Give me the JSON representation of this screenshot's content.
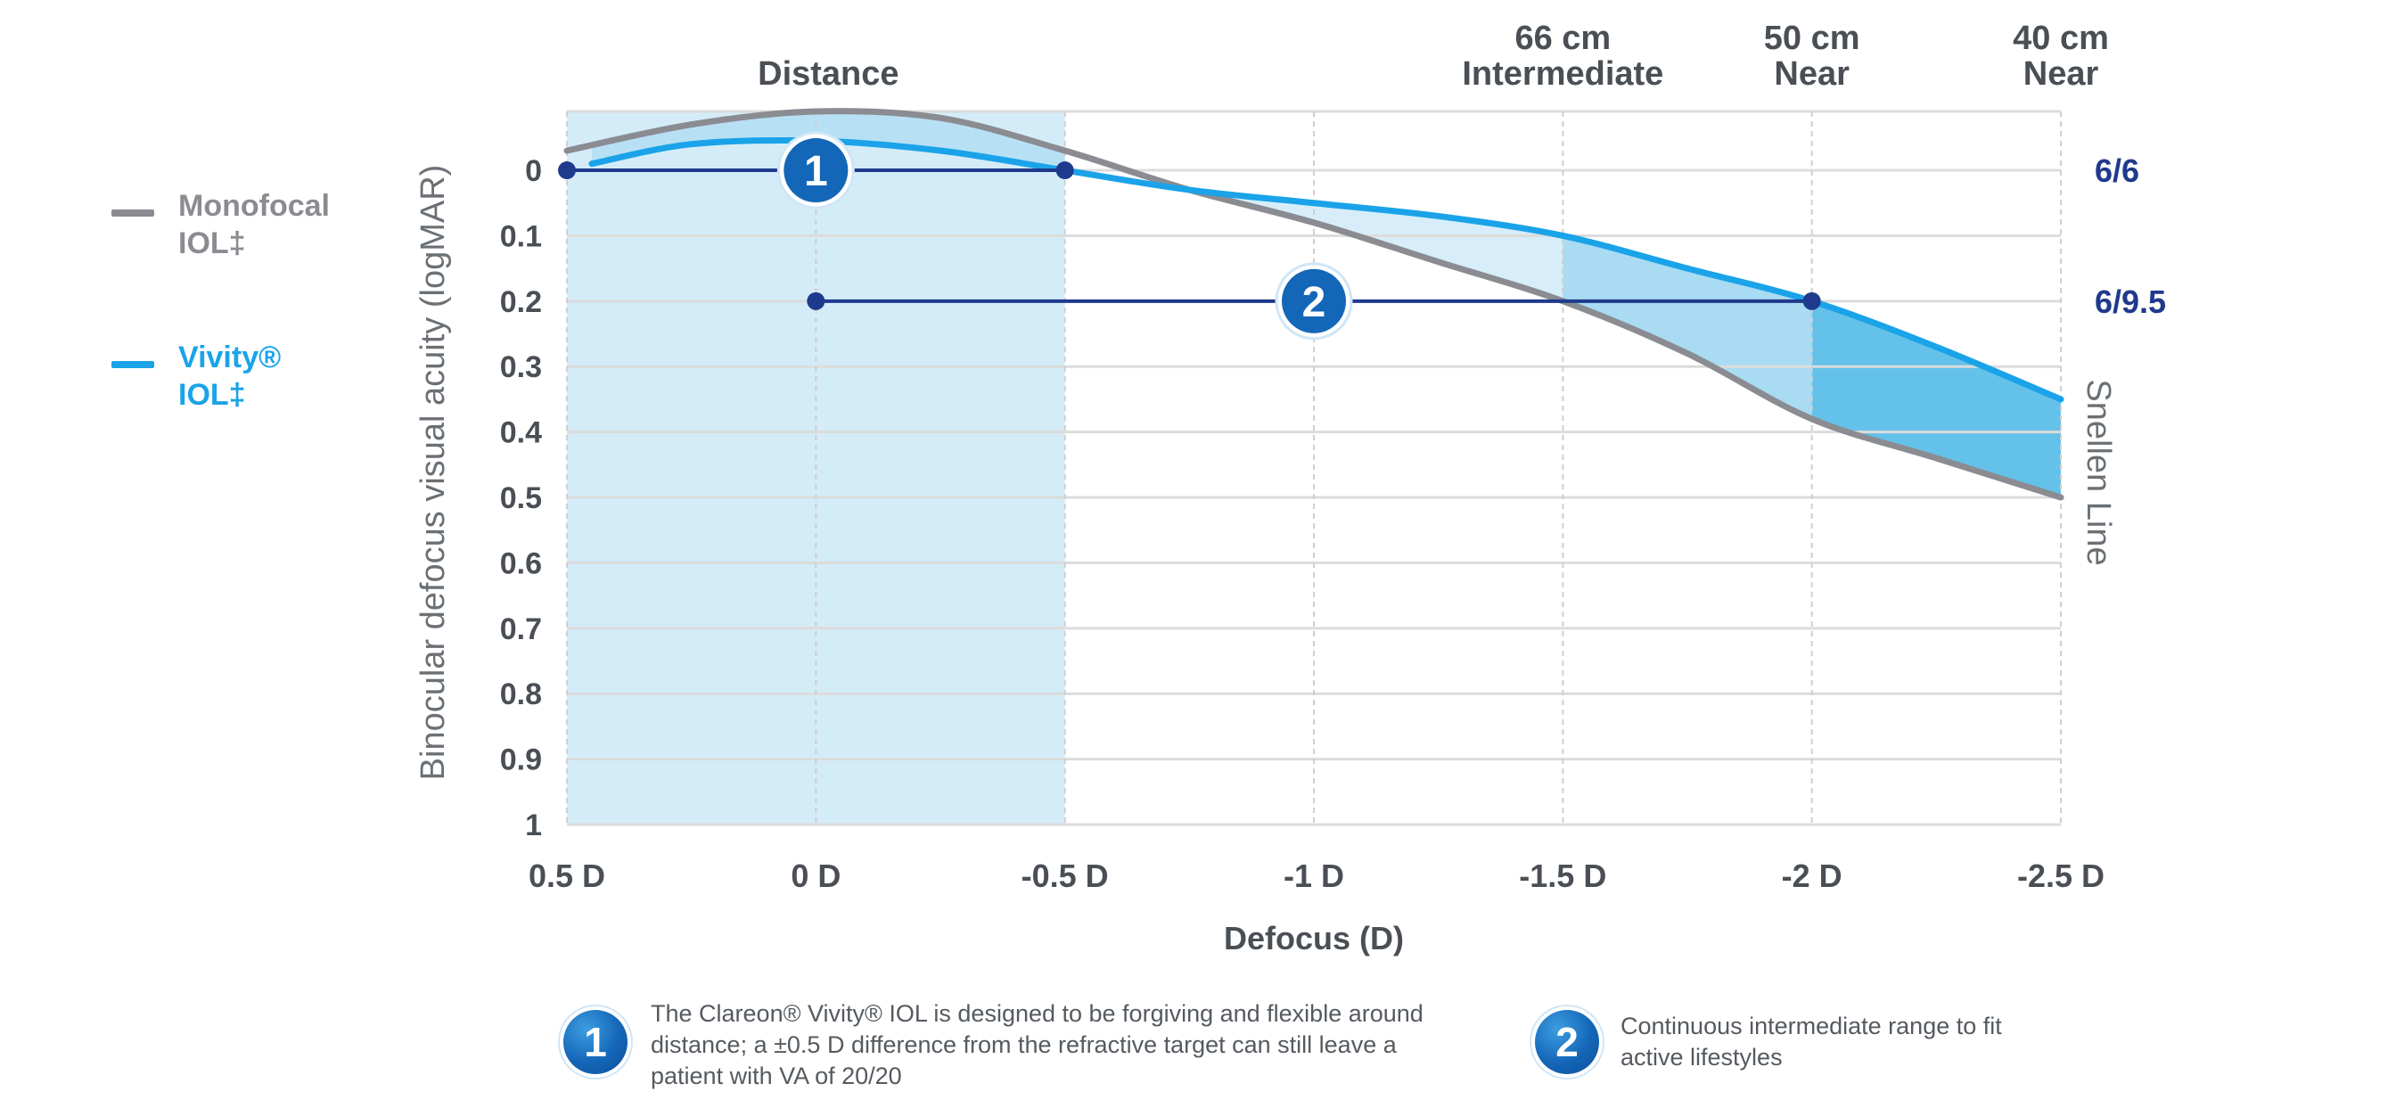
{
  "chart_data": {
    "type": "line",
    "xlabel": "Defocus (D)",
    "ylabel": "Binocular defocus visual acuity (logMAR)",
    "right_axis_label": "Snellen Line",
    "x_ticks": [
      "0.5 D",
      "0 D",
      "-0.5 D",
      "-1 D",
      "-1.5 D",
      "-2 D",
      "-2.5 D"
    ],
    "x_tick_values": [
      0.5,
      0,
      -0.5,
      -1,
      -1.5,
      -2,
      -2.5
    ],
    "y_ticks": [
      "0",
      "0.1",
      "0.2",
      "0.3",
      "0.4",
      "0.5",
      "0.6",
      "0.7",
      "0.8",
      "0.9",
      "1"
    ],
    "y_tick_values": [
      0,
      0.1,
      0.2,
      0.3,
      0.4,
      0.5,
      0.6,
      0.7,
      0.8,
      0.9,
      1
    ],
    "xlim": [
      0.5,
      -2.5
    ],
    "ylim": [
      -0.09,
      1
    ],
    "y_inverted": true,
    "grid": true,
    "legend_position": "left",
    "snellen_labels": [
      {
        "label": "6/6",
        "logmar": 0
      },
      {
        "label": "6/9.5",
        "logmar": 0.2
      }
    ],
    "top_labels": [
      {
        "lines": [
          "Distance"
        ],
        "x": 0
      },
      {
        "lines": [
          "66 cm",
          "Intermediate"
        ],
        "x": -1.5
      },
      {
        "lines": [
          "50 cm",
          "Near"
        ],
        "x": -2
      },
      {
        "lines": [
          "40 cm",
          "Near"
        ],
        "x": -2.5
      }
    ],
    "distance_band": [
      0.5,
      -0.5
    ],
    "series": [
      {
        "name": "Monofocal IOL‡",
        "color": "#8a8c91",
        "x": [
          0.5,
          0.25,
          0,
          -0.25,
          -0.5,
          -0.75,
          -1,
          -1.25,
          -1.5,
          -1.75,
          -2,
          -2.25,
          -2.5
        ],
        "y": [
          -0.03,
          -0.07,
          -0.09,
          -0.08,
          -0.03,
          0.03,
          0.08,
          0.14,
          0.2,
          0.28,
          0.38,
          0.44,
          0.5
        ]
      },
      {
        "name": "Vivity® IOL‡",
        "color": "#1aa3e8",
        "x": [
          0.45,
          0.25,
          0,
          -0.25,
          -0.5,
          -0.75,
          -1,
          -1.25,
          -1.5,
          -1.75,
          -2,
          -2.25,
          -2.5
        ],
        "y": [
          -0.01,
          -0.04,
          -0.045,
          -0.03,
          0,
          0.03,
          0.05,
          0.07,
          0.1,
          0.15,
          0.2,
          0.27,
          0.35
        ]
      }
    ],
    "ranges": [
      {
        "id": "1",
        "x_start": 0.5,
        "x_end": -0.5,
        "logmar": 0,
        "badge_x": 0
      },
      {
        "id": "2",
        "x_start": 0,
        "x_end": -2,
        "logmar": 0.2,
        "badge_x": -1
      }
    ],
    "colors": {
      "band": "#d4ecf8",
      "range_line": "#1f3a8c",
      "snellen_text": "#1f3a8c",
      "fill_light": "#d7eefa",
      "fill_mid": "#a9dbf3",
      "fill_dark": "#64c1ea",
      "grid": "#dcdcdc",
      "axis_text": "#4a4f55"
    }
  },
  "legend": {
    "monofocal": "Monofocal\nIOL‡",
    "vivity": "Vivity®\nIOL‡"
  },
  "footnotes": [
    {
      "badge": "1",
      "text": "The Clareon® Vivity® IOL is designed to be forgiving and flexible around distance; a ±0.5 D difference from the refractive target can still leave a patient with VA of 20/20"
    },
    {
      "badge": "2",
      "text": "Continuous intermediate range to fit active lifestyles"
    }
  ]
}
